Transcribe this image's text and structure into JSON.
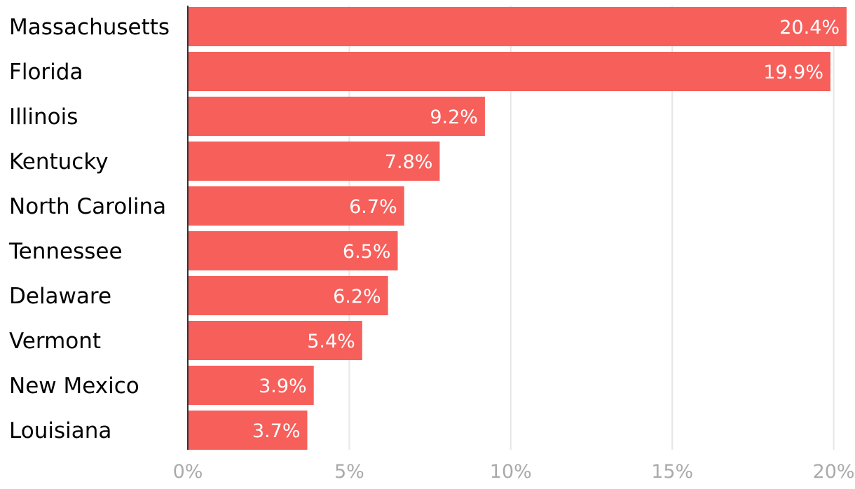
{
  "chart_data": {
    "type": "bar",
    "orientation": "horizontal",
    "categories": [
      "Massachusetts",
      "Florida",
      "Illinois",
      "Kentucky",
      "North Carolina",
      "Tennessee",
      "Delaware",
      "Vermont",
      "New Mexico",
      "Louisiana"
    ],
    "values": [
      20.4,
      19.9,
      9.2,
      7.8,
      6.7,
      6.5,
      6.2,
      5.4,
      3.9,
      3.7
    ],
    "value_labels": [
      "20.4%",
      "19.9%",
      "9.2%",
      "7.8%",
      "6.7%",
      "6.5%",
      "6.2%",
      "5.4%",
      "3.9%",
      "3.7%"
    ],
    "x_ticks": [
      0,
      5,
      10,
      15,
      20
    ],
    "x_tick_labels": [
      "0%",
      "5%",
      "10%",
      "15%",
      "20%"
    ],
    "xlim": [
      0,
      20.4
    ],
    "title": "",
    "xlabel": "",
    "ylabel": "",
    "grid": "vertical",
    "legend": "none",
    "bar_color": "#f75f5b"
  }
}
